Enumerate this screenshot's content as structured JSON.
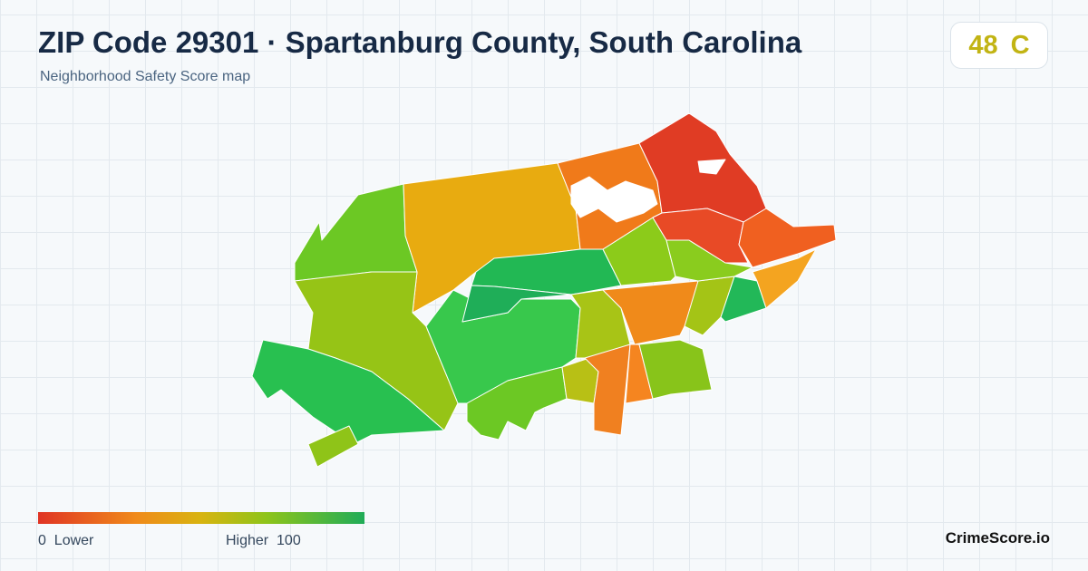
{
  "header": {
    "title": "ZIP Code 29301 · Spartanburg County, South Carolina",
    "subtitle": "Neighborhood Safety Score map"
  },
  "score": {
    "value": 48,
    "grade": "C"
  },
  "legend": {
    "min": 0,
    "min_label": "Lower",
    "max_label": "Higher",
    "max": 100
  },
  "brand": "CrimeScore.io"
}
